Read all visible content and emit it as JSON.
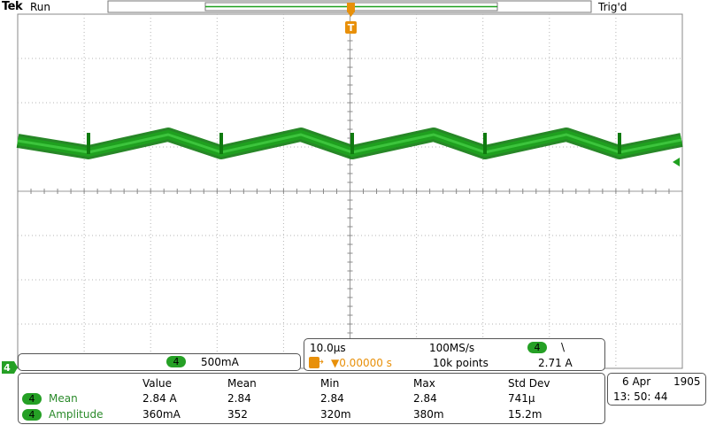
{
  "status": {
    "brand": "Tek",
    "run_state": "Run",
    "trigger_state": "Trig'd"
  },
  "markers": {
    "trigger_marker": "T",
    "ground_marker": "4"
  },
  "channel": {
    "number": "4",
    "scale": "500mA",
    "color": "#1fa01f"
  },
  "timebase": {
    "horizontal_scale": "10.0µs",
    "sample_rate": "100MS/s",
    "trigger_channel": "4",
    "trigger_slope_symbol": "\\",
    "trigger_position": "▼0.00000 s",
    "trigger_prefix": "T→",
    "record_length": "10k points",
    "trigger_level": "2.71 A"
  },
  "measurements": {
    "headers": [
      "Value",
      "Mean",
      "Min",
      "Max",
      "Std Dev"
    ],
    "rows": [
      {
        "channel": "4",
        "name": "Mean",
        "value": "2.84 A",
        "mean": "2.84",
        "min": "2.84",
        "max": "2.84",
        "stddev": "741µ"
      },
      {
        "channel": "4",
        "name": "Amplitude",
        "value": "360mA",
        "mean": "352",
        "min": "320m",
        "max": "380m",
        "stddev": "15.2m"
      }
    ]
  },
  "datetime": {
    "date": "6 Apr",
    "year": "1905",
    "time": "13: 50: 44"
  }
}
